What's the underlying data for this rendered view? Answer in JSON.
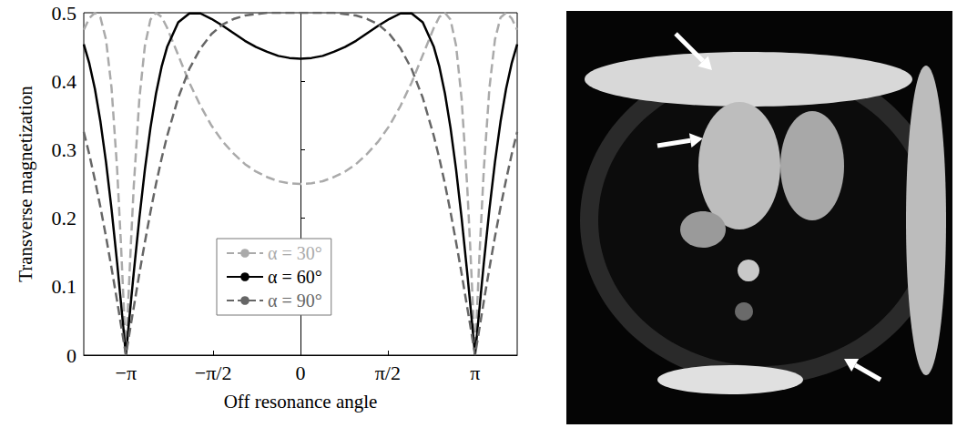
{
  "chart_data": {
    "type": "line",
    "x_label": "Off resonance angle",
    "y_label": "Transverse magnetization",
    "x": [
      -3.9,
      -3.8,
      -3.7,
      -3.6,
      -3.5,
      -3.4,
      -3.3,
      -3.23,
      -3.18,
      -3.1416,
      -3.1,
      -3.05,
      -3.0,
      -2.9,
      -2.8,
      -2.7,
      -2.6,
      -2.5,
      -2.4,
      -2.2,
      -2.0,
      -1.8,
      -1.6,
      -1.4,
      -1.2,
      -1.0,
      -0.8,
      -0.6,
      -0.4,
      -0.2,
      0,
      0.2,
      0.4,
      0.6,
      0.8,
      1.0,
      1.2,
      1.4,
      1.6,
      1.8,
      2.0,
      2.2,
      2.4,
      2.5,
      2.6,
      2.7,
      2.8,
      2.9,
      3.0,
      3.05,
      3.1,
      3.1416,
      3.18,
      3.23,
      3.3,
      3.4,
      3.5,
      3.6,
      3.7,
      3.8,
      3.9
    ],
    "series": [
      {
        "name": "α = 30°",
        "color": "#aaaaaa",
        "line_style": "dashed",
        "values": [
          0.475,
          0.492,
          0.5,
          0.493,
          0.461,
          0.39,
          0.272,
          0.161,
          0.071,
          0,
          0.077,
          0.166,
          0.247,
          0.374,
          0.452,
          0.49,
          0.5,
          0.494,
          0.478,
          0.438,
          0.398,
          0.364,
          0.335,
          0.312,
          0.294,
          0.279,
          0.268,
          0.26,
          0.254,
          0.251,
          0.25,
          0.251,
          0.254,
          0.26,
          0.268,
          0.279,
          0.294,
          0.312,
          0.335,
          0.364,
          0.398,
          0.438,
          0.478,
          0.494,
          0.5,
          0.49,
          0.452,
          0.374,
          0.247,
          0.166,
          0.077,
          0,
          0.071,
          0.161,
          0.272,
          0.39,
          0.461,
          0.493,
          0.5,
          0.492,
          0.475
        ]
      },
      {
        "name": "α = 60°",
        "color": "#000000",
        "line_style": "solid",
        "values": [
          0.454,
          0.426,
          0.389,
          0.341,
          0.282,
          0.213,
          0.135,
          0.076,
          0.033,
          0,
          0.036,
          0.079,
          0.121,
          0.2,
          0.271,
          0.332,
          0.382,
          0.421,
          0.45,
          0.486,
          0.499,
          0.499,
          0.491,
          0.481,
          0.47,
          0.459,
          0.45,
          0.443,
          0.437,
          0.434,
          0.433,
          0.434,
          0.437,
          0.443,
          0.45,
          0.459,
          0.47,
          0.481,
          0.491,
          0.499,
          0.499,
          0.486,
          0.45,
          0.421,
          0.382,
          0.332,
          0.271,
          0.2,
          0.121,
          0.079,
          0.036,
          0,
          0.033,
          0.076,
          0.135,
          0.213,
          0.282,
          0.341,
          0.389,
          0.426,
          0.454
        ]
      },
      {
        "name": "α = 90°",
        "color": "#666666",
        "line_style": "dashed",
        "values": [
          0.326,
          0.293,
          0.256,
          0.216,
          0.173,
          0.127,
          0.079,
          0.044,
          0.019,
          0,
          0.021,
          0.046,
          0.07,
          0.119,
          0.165,
          0.209,
          0.25,
          0.287,
          0.32,
          0.376,
          0.418,
          0.448,
          0.469,
          0.483,
          0.491,
          0.496,
          0.498,
          0.5,
          0.5,
          0.5,
          0.5,
          0.5,
          0.5,
          0.5,
          0.498,
          0.496,
          0.491,
          0.483,
          0.469,
          0.448,
          0.418,
          0.376,
          0.32,
          0.287,
          0.25,
          0.209,
          0.165,
          0.119,
          0.07,
          0.046,
          0.021,
          0,
          0.019,
          0.044,
          0.079,
          0.127,
          0.173,
          0.216,
          0.256,
          0.293,
          0.326
        ]
      }
    ],
    "xlim": [
      -3.9,
      3.9
    ],
    "xticks": [
      {
        "value": -3.1416,
        "label": "−π"
      },
      {
        "value": -1.5708,
        "label": "−π/2"
      },
      0,
      {
        "value": 1.5708,
        "label": "π/2"
      },
      {
        "value": 3.1416,
        "label": "π"
      }
    ],
    "ylim": [
      0,
      0.5
    ],
    "yticks": [
      0,
      0.1,
      0.2,
      0.3,
      0.4,
      0.5
    ],
    "grid": false,
    "legend": "bottom"
  },
  "image": {
    "arrows": 3
  }
}
